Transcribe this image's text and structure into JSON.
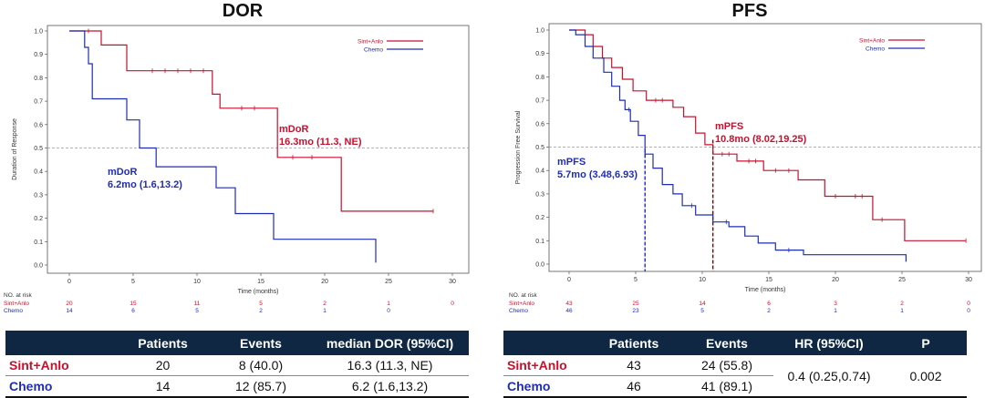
{
  "colors": {
    "sint": "#c8102e",
    "chemo": "#1f2db3",
    "header_bg": "#0f2742",
    "dashed": "#999999"
  },
  "chart_data": [
    {
      "type": "line",
      "title": "DOR",
      "xlabel": "Time (months)",
      "ylabel": "Duration of Response",
      "xlim": [
        0,
        30
      ],
      "ylim": [
        0,
        1
      ],
      "x_ticks": [
        "0",
        "5",
        "10",
        "15",
        "20",
        "25",
        "30"
      ],
      "y_ticks": [
        "0.0",
        "0.1",
        "0.2",
        "0.3",
        "0.4",
        "0.5",
        "0.6",
        "0.7",
        "0.8",
        "0.9",
        "1.0"
      ],
      "reference_line_y": 0.5,
      "legend": [
        "Sint+Anlo",
        "Chemo"
      ],
      "series": [
        {
          "name": "Sint+Anlo",
          "color": "#c8102e",
          "points": [
            [
              0,
              1
            ],
            [
              2.5,
              1
            ],
            [
              2.5,
              0.94
            ],
            [
              4.5,
              0.94
            ],
            [
              4.5,
              0.83
            ],
            [
              11.2,
              0.83
            ],
            [
              11.2,
              0.73
            ],
            [
              11.8,
              0.73
            ],
            [
              11.8,
              0.67
            ],
            [
              16.3,
              0.67
            ],
            [
              16.3,
              0.46
            ],
            [
              21.3,
              0.46
            ],
            [
              21.3,
              0.23
            ],
            [
              28.5,
              0.23
            ]
          ],
          "censors": [
            [
              1.5,
              1
            ],
            [
              6.5,
              0.83
            ],
            [
              7.5,
              0.83
            ],
            [
              8.5,
              0.83
            ],
            [
              9.5,
              0.83
            ],
            [
              10.5,
              0.83
            ],
            [
              13.5,
              0.67
            ],
            [
              14.5,
              0.67
            ],
            [
              17.5,
              0.46
            ],
            [
              19,
              0.46
            ],
            [
              28.5,
              0.23
            ]
          ]
        },
        {
          "name": "Chemo",
          "color": "#1f2db3",
          "points": [
            [
              0,
              1
            ],
            [
              1.2,
              1
            ],
            [
              1.2,
              0.93
            ],
            [
              1.5,
              0.93
            ],
            [
              1.5,
              0.86
            ],
            [
              1.8,
              0.86
            ],
            [
              1.8,
              0.71
            ],
            [
              4.5,
              0.71
            ],
            [
              4.5,
              0.62
            ],
            [
              5.5,
              0.62
            ],
            [
              5.5,
              0.5
            ],
            [
              6.8,
              0.5
            ],
            [
              6.8,
              0.42
            ],
            [
              11.5,
              0.42
            ],
            [
              11.5,
              0.33
            ],
            [
              13,
              0.33
            ],
            [
              13,
              0.22
            ],
            [
              16,
              0.22
            ],
            [
              16,
              0.11
            ],
            [
              24,
              0.11
            ],
            [
              24,
              0.01
            ]
          ],
          "censors": []
        }
      ],
      "annotations": [
        {
          "text": "mDoR",
          "color": "#c8102e"
        },
        {
          "text": "16.3mo (11.3, NE)",
          "color": "#c8102e"
        },
        {
          "text": "mDoR",
          "color": "#1f2db3"
        },
        {
          "text": "6.2mo (1.6,13.2)",
          "color": "#1f2db3"
        }
      ],
      "risk_table": {
        "header": "NO. at risk",
        "rows": [
          {
            "label": "Sint+Anlo",
            "color": "#c8102e",
            "values": [
              "20",
              "15",
              "11",
              "5",
              "2",
              "1",
              "0"
            ]
          },
          {
            "label": "Chemo",
            "color": "#1f2db3",
            "values": [
              "14",
              "6",
              "5",
              "2",
              "1",
              "0",
              ""
            ]
          }
        ]
      }
    },
    {
      "type": "line",
      "title": "PFS",
      "xlabel": "Time (months)",
      "ylabel": "Progression Free Survival",
      "xlim": [
        0,
        30
      ],
      "ylim": [
        0,
        1
      ],
      "x_ticks": [
        "0",
        "5",
        "10",
        "15",
        "20",
        "25",
        "30"
      ],
      "y_ticks": [
        "0.0",
        "0.1",
        "0.2",
        "0.3",
        "0.4",
        "0.5",
        "0.6",
        "0.7",
        "0.8",
        "0.9",
        "1.0"
      ],
      "reference_line_y": 0.5,
      "median_lines": [
        {
          "x": 5.7,
          "color": "#1f2db3"
        },
        {
          "x": 10.8,
          "color": "#7a0a0a"
        }
      ],
      "legend": [
        "Sint+Anlo",
        "Chemo"
      ],
      "series": [
        {
          "name": "Sint+Anlo",
          "color": "#c8102e",
          "points": [
            [
              0,
              1
            ],
            [
              1.2,
              1
            ],
            [
              1.2,
              0.98
            ],
            [
              1.8,
              0.98
            ],
            [
              1.8,
              0.93
            ],
            [
              2.5,
              0.93
            ],
            [
              2.5,
              0.88
            ],
            [
              3.2,
              0.88
            ],
            [
              3.2,
              0.84
            ],
            [
              4,
              0.84
            ],
            [
              4,
              0.79
            ],
            [
              4.8,
              0.79
            ],
            [
              4.8,
              0.74
            ],
            [
              5.8,
              0.74
            ],
            [
              5.8,
              0.7
            ],
            [
              7.8,
              0.7
            ],
            [
              7.8,
              0.67
            ],
            [
              8.6,
              0.67
            ],
            [
              8.6,
              0.63
            ],
            [
              9.5,
              0.63
            ],
            [
              9.5,
              0.56
            ],
            [
              10.2,
              0.56
            ],
            [
              10.2,
              0.51
            ],
            [
              10.8,
              0.51
            ],
            [
              10.8,
              0.47
            ],
            [
              12.6,
              0.47
            ],
            [
              12.6,
              0.44
            ],
            [
              14.6,
              0.44
            ],
            [
              14.6,
              0.4
            ],
            [
              17.2,
              0.4
            ],
            [
              17.2,
              0.36
            ],
            [
              19.2,
              0.36
            ],
            [
              19.2,
              0.29
            ],
            [
              22.8,
              0.29
            ],
            [
              22.8,
              0.19
            ],
            [
              25.2,
              0.19
            ],
            [
              25.2,
              0.1
            ],
            [
              29.8,
              0.1
            ]
          ],
          "censors": [
            [
              6.5,
              0.7
            ],
            [
              7,
              0.7
            ],
            [
              11.5,
              0.47
            ],
            [
              12,
              0.47
            ],
            [
              13.5,
              0.44
            ],
            [
              14,
              0.44
            ],
            [
              15.5,
              0.4
            ],
            [
              16.5,
              0.4
            ],
            [
              20,
              0.29
            ],
            [
              21.5,
              0.29
            ],
            [
              22,
              0.29
            ],
            [
              23.5,
              0.19
            ],
            [
              29.8,
              0.1
            ]
          ]
        },
        {
          "name": "Chemo",
          "color": "#1f2db3",
          "points": [
            [
              0,
              1
            ],
            [
              0.5,
              1
            ],
            [
              0.5,
              0.98
            ],
            [
              1.2,
              0.98
            ],
            [
              1.2,
              0.93
            ],
            [
              1.8,
              0.93
            ],
            [
              1.8,
              0.88
            ],
            [
              2.6,
              0.88
            ],
            [
              2.6,
              0.82
            ],
            [
              3.2,
              0.82
            ],
            [
              3.2,
              0.76
            ],
            [
              3.8,
              0.76
            ],
            [
              3.8,
              0.7
            ],
            [
              4.2,
              0.7
            ],
            [
              4.2,
              0.66
            ],
            [
              4.6,
              0.66
            ],
            [
              4.6,
              0.61
            ],
            [
              5.2,
              0.61
            ],
            [
              5.2,
              0.55
            ],
            [
              5.7,
              0.55
            ],
            [
              5.7,
              0.47
            ],
            [
              6.3,
              0.47
            ],
            [
              6.3,
              0.41
            ],
            [
              7,
              0.41
            ],
            [
              7,
              0.34
            ],
            [
              7.8,
              0.34
            ],
            [
              7.8,
              0.3
            ],
            [
              8.5,
              0.3
            ],
            [
              8.5,
              0.25
            ],
            [
              9.5,
              0.25
            ],
            [
              9.5,
              0.21
            ],
            [
              10.8,
              0.21
            ],
            [
              10.8,
              0.18
            ],
            [
              12,
              0.18
            ],
            [
              12,
              0.16
            ],
            [
              13.2,
              0.16
            ],
            [
              13.2,
              0.12
            ],
            [
              14.2,
              0.12
            ],
            [
              14.2,
              0.09
            ],
            [
              15.5,
              0.09
            ],
            [
              15.5,
              0.06
            ],
            [
              17.6,
              0.06
            ],
            [
              17.6,
              0.04
            ],
            [
              25.3,
              0.04
            ],
            [
              25.3,
              0.01
            ]
          ],
          "censors": [
            [
              4.5,
              0.66
            ],
            [
              9.2,
              0.25
            ],
            [
              11.8,
              0.18
            ],
            [
              16.5,
              0.06
            ]
          ]
        }
      ],
      "annotations": [
        {
          "text": "mPFS",
          "color": "#c8102e"
        },
        {
          "text": "10.8mo (8.02,19.25)",
          "color": "#c8102e"
        },
        {
          "text": "mPFS",
          "color": "#1f2db3"
        },
        {
          "text": "5.7mo (3.48,6.93)",
          "color": "#1f2db3"
        }
      ],
      "risk_table": {
        "header": "NO. at risk",
        "rows": [
          {
            "label": "Sint+Anlo",
            "color": "#c8102e",
            "values": [
              "43",
              "25",
              "14",
              "6",
              "3",
              "2",
              "0"
            ]
          },
          {
            "label": "Chemo",
            "color": "#1f2db3",
            "values": [
              "46",
              "23",
              "5",
              "2",
              "1",
              "1",
              "0"
            ]
          }
        ]
      }
    }
  ],
  "dor_table": {
    "headers": [
      "",
      "Patients",
      "Events",
      "median DOR (95%CI)"
    ],
    "rows": [
      {
        "group": "Sint+Anlo",
        "patients": "20",
        "events": "8 (40.0)",
        "median": "16.3 (11.3, NE)"
      },
      {
        "group": "Chemo",
        "patients": "14",
        "events": "12 (85.7)",
        "median": "6.2 (1.6,13.2)"
      }
    ]
  },
  "pfs_table": {
    "headers": [
      "",
      "Patients",
      "Events",
      "HR (95%CI)",
      "P"
    ],
    "rows": [
      {
        "group": "Sint+Anlo",
        "patients": "43",
        "events": "24 (55.8)"
      },
      {
        "group": "Chemo",
        "patients": "46",
        "events": "41 (89.1)"
      }
    ],
    "hr": "0.4 (0.25,0.74)",
    "p": "0.002"
  }
}
